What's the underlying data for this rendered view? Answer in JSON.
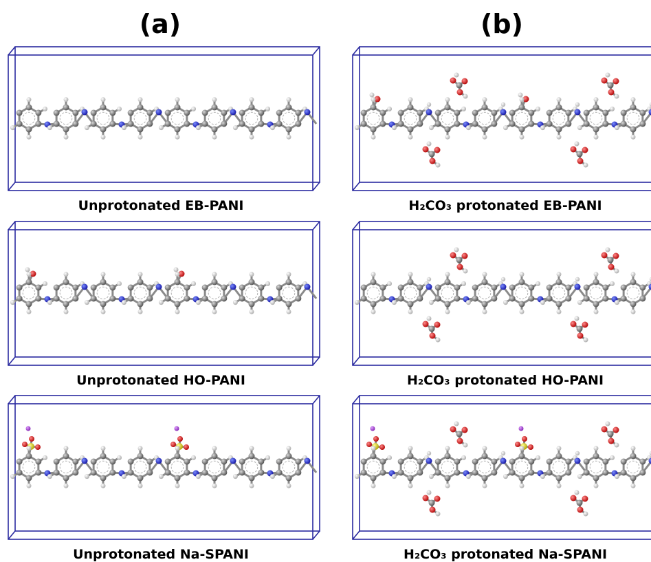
{
  "columns": [
    {
      "label": "(a)",
      "panels": [
        {
          "caption": "Unprotonated EB-PANI"
        },
        {
          "caption": "Unprotonated HO-PANI"
        },
        {
          "caption": "Unprotonated Na-SPANI"
        }
      ]
    },
    {
      "label": "(b)",
      "panels": [
        {
          "caption": "H₂CO₃ protonated EB-PANI"
        },
        {
          "caption": "H₂CO₃ protonated HO-PANI"
        },
        {
          "caption": "H₂CO₃ protonated Na-SPANI"
        }
      ]
    }
  ]
}
